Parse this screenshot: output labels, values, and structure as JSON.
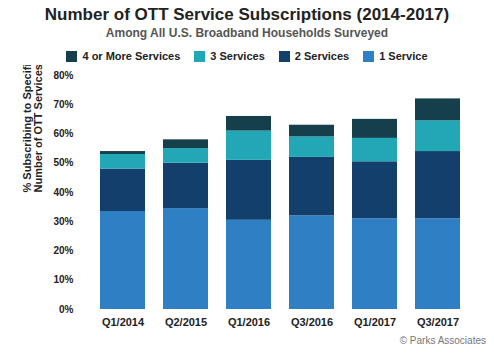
{
  "chart_data": {
    "type": "bar",
    "title": "Number of OTT Service Subscriptions (2014-2017)",
    "subtitle": "Among All U.S. Broadband Households Surveyed",
    "ylabel": "% Subscribing to Specified Number of OTT Services",
    "caption": "© Parks Associates",
    "stacked": true,
    "categories": [
      "Q1/2014",
      "Q2/2015",
      "Q1/2016",
      "Q3/2016",
      "Q1/2017",
      "Q3/2017"
    ],
    "series": [
      {
        "name": "1 Service",
        "color": "#2f7fc4",
        "values": [
          33.5,
          34.5,
          30.5,
          32,
          31,
          31
        ]
      },
      {
        "name": "2 Services",
        "color": "#123f6b",
        "values": [
          14.5,
          15.5,
          20.5,
          20,
          19.5,
          23
        ]
      },
      {
        "name": "3 Services",
        "color": "#21a7b6",
        "values": [
          5,
          5,
          10,
          7,
          8,
          10.5
        ]
      },
      {
        "name": "4 or More Services",
        "color": "#143f4b",
        "values": [
          1,
          3,
          5,
          4,
          6.5,
          7.5
        ]
      }
    ],
    "ylim": [
      0,
      80
    ],
    "yticks": [
      {
        "value": 0,
        "label": "0%"
      },
      {
        "value": 10,
        "label": "10%"
      },
      {
        "value": 20,
        "label": "20%"
      },
      {
        "value": 30,
        "label": "30%"
      },
      {
        "value": 40,
        "label": "40%"
      },
      {
        "value": 50,
        "label": "50%"
      },
      {
        "value": 60,
        "label": "60%"
      },
      {
        "value": 70,
        "label": "70%"
      },
      {
        "value": 80,
        "label": "80%"
      }
    ],
    "grid": false,
    "legend": "top"
  }
}
